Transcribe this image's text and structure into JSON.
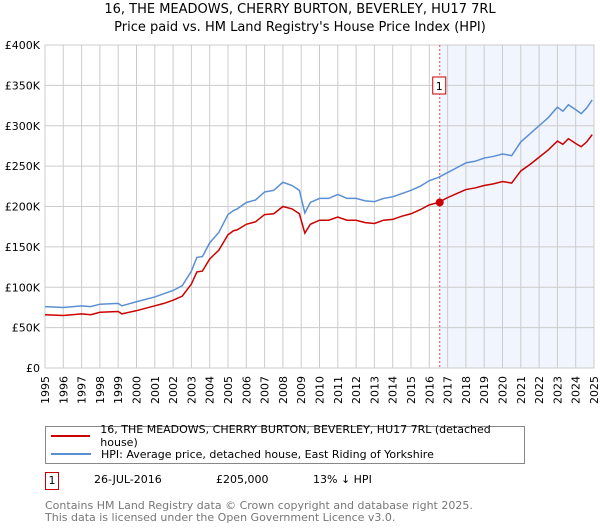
{
  "chart_data": {
    "type": "line",
    "title": "16, THE MEADOWS, CHERRY BURTON, BEVERLEY, HU17 7RL",
    "subtitle": "Price paid vs. HM Land Registry's House Price Index (HPI)",
    "xlim": [
      1995,
      2025
    ],
    "ylim": [
      0,
      400000
    ],
    "x_ticks": [
      "1995",
      "1996",
      "1997",
      "1998",
      "1999",
      "2000",
      "2001",
      "2002",
      "2003",
      "2004",
      "2005",
      "2006",
      "2007",
      "2008",
      "2009",
      "2010",
      "2011",
      "2012",
      "2013",
      "2014",
      "2015",
      "2016",
      "2017",
      "2018",
      "2019",
      "2020",
      "2021",
      "2022",
      "2023",
      "2024",
      "2025"
    ],
    "y_ticks": [
      {
        "v": 0,
        "l": "£0"
      },
      {
        "v": 50000,
        "l": "£50K"
      },
      {
        "v": 100000,
        "l": "£100K"
      },
      {
        "v": 150000,
        "l": "£150K"
      },
      {
        "v": 200000,
        "l": "£200K"
      },
      {
        "v": 250000,
        "l": "£250K"
      },
      {
        "v": 300000,
        "l": "£300K"
      },
      {
        "v": 350000,
        "l": "£350K"
      },
      {
        "v": 400000,
        "l": "£400K"
      }
    ],
    "grid": true,
    "x": [
      1995,
      1996,
      1997,
      1997.5,
      1998,
      1999,
      1999.2,
      2000,
      2001,
      2001.5,
      2002,
      2002.5,
      2003,
      2003.3,
      2003.6,
      2004,
      2004.5,
      2005,
      2005.3,
      2005.5,
      2006,
      2006.5,
      2007,
      2007.5,
      2008,
      2008.5,
      2008.9,
      2009.2,
      2009.5,
      2010,
      2010.5,
      2011,
      2011.5,
      2012,
      2012.5,
      2013,
      2013.5,
      2014,
      2014.5,
      2015,
      2015.5,
      2016,
      2016.5,
      2017,
      2017.5,
      2018,
      2018.5,
      2019,
      2019.5,
      2020,
      2020.5,
      2021,
      2021.5,
      2022,
      2022.5,
      2023,
      2023.3,
      2023.6,
      2024,
      2024.3,
      2024.6,
      2024.9
    ],
    "series": [
      {
        "name": "16, THE MEADOWS, CHERRY BURTON, BEVERLEY, HU17 7RL (detached house)",
        "color": "#cc0000",
        "values_k": [
          66,
          65,
          67,
          66,
          69,
          70,
          67,
          71,
          77,
          80,
          84,
          89,
          104,
          119,
          120,
          135,
          146,
          165,
          170,
          171,
          178,
          181,
          190,
          191,
          200,
          197,
          191,
          167,
          178,
          183,
          183,
          187,
          183,
          183,
          180,
          179,
          183,
          184,
          188,
          191,
          196,
          202,
          205,
          211,
          216,
          221,
          223,
          226,
          228,
          231,
          229,
          244,
          252,
          261,
          270,
          281,
          277,
          284,
          278,
          274,
          280,
          289
        ]
      },
      {
        "name": "HPI: Average price, detached house, East Riding of Yorkshire",
        "color": "#5b8fd4",
        "values_k": [
          76,
          75,
          77,
          76,
          79,
          80,
          77,
          82,
          88,
          92,
          96,
          102,
          120,
          137,
          138,
          155,
          168,
          190,
          195,
          197,
          205,
          208,
          218,
          220,
          230,
          226,
          220,
          192,
          205,
          210,
          210,
          215,
          210,
          210,
          207,
          206,
          210,
          212,
          216,
          220,
          225,
          232,
          236,
          242,
          248,
          254,
          256,
          260,
          262,
          265,
          263,
          280,
          290,
          300,
          310,
          323,
          318,
          326,
          320,
          315,
          322,
          332
        ]
      }
    ],
    "sales": [
      {
        "label": "1",
        "x": 2016.57,
        "price": 205000,
        "date": "26-JUL-2016",
        "price_text": "£205,000",
        "hpi_text": "13% ↓ HPI"
      }
    ],
    "shade_from": 2016.57,
    "legend": "bottom"
  },
  "footer": {
    "line1": "Contains HM Land Registry data © Crown copyright and database right 2025.",
    "line2": "This data is licensed under the Open Government Licence v3.0."
  }
}
